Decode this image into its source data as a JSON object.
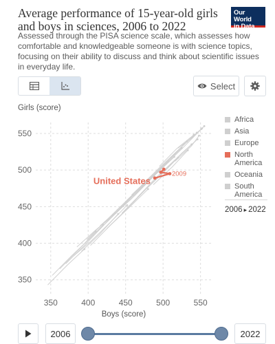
{
  "header": {
    "title": "Average performance of 15-year-old girls and boys in sciences, 2006 to 2022",
    "subtitle": "Assessed through the PISA science scale, which assesses how comfortable and knowledgeable someone is with science topics, focusing on their ability to discuss and think about scientific issues in everyday life.",
    "logo_line1": "Our World",
    "logo_line2": "in Data"
  },
  "toolbar": {
    "table_tab_icon": "table-icon",
    "chart_tab_icon": "scatter-chart-icon",
    "select_label": "Select",
    "select_icon": "eye-icon",
    "settings_icon": "gear-icon"
  },
  "legend": {
    "items": [
      {
        "label": "Africa",
        "color": "#cfcfcf"
      },
      {
        "label": "Asia",
        "color": "#cfcfcf"
      },
      {
        "label": "Europe",
        "color": "#cfcfcf"
      },
      {
        "label": "North America",
        "color": "#e56e5a"
      },
      {
        "label": "Oceania",
        "color": "#cfcfcf"
      },
      {
        "label": "South America",
        "color": "#cfcfcf"
      }
    ],
    "time_start": "2006",
    "time_end": "2022",
    "time_arrow": "▸"
  },
  "timeline": {
    "start": "2006",
    "end": "2022",
    "play_icon": "play-icon"
  },
  "chart_data": {
    "type": "scatter",
    "title": "Average performance of 15-year-old girls and boys in sciences, 2006 to 2022",
    "xlabel": "Boys (score)",
    "ylabel": "Girls (score)",
    "xlim": [
      330,
      565
    ],
    "ylim": [
      330,
      565
    ],
    "xticks": [
      350,
      400,
      450,
      500,
      550
    ],
    "yticks": [
      350,
      400,
      450,
      500,
      550
    ],
    "grid": true,
    "legend_position": "right",
    "highlight_color": "#e56e5a",
    "background_color": "#cfcfcf",
    "highlighted_series": [
      {
        "name": "United States",
        "region": "North America",
        "points": [
          {
            "x": 489,
            "y": 489,
            "year": "2006"
          },
          {
            "x": 509,
            "y": 495,
            "year": "2009"
          },
          {
            "x": 497,
            "y": 497
          },
          {
            "x": 501,
            "y": 501
          }
        ],
        "label_year": "2009"
      }
    ],
    "background_series": [
      {
        "points": [
          [
            346,
            343
          ],
          [
            372,
            370
          ],
          [
            395,
            392
          ]
        ]
      },
      {
        "points": [
          [
            352,
            356
          ],
          [
            378,
            383
          ],
          [
            402,
            406
          ],
          [
            420,
            425
          ]
        ]
      },
      {
        "points": [
          [
            362,
            365
          ],
          [
            388,
            392
          ],
          [
            410,
            416
          ]
        ]
      },
      {
        "points": [
          [
            370,
            372
          ],
          [
            396,
            398
          ],
          [
            421,
            425
          ],
          [
            445,
            450
          ]
        ]
      },
      {
        "points": [
          [
            381,
            383
          ],
          [
            405,
            404
          ],
          [
            431,
            430
          ],
          [
            452,
            452
          ]
        ]
      },
      {
        "points": [
          [
            385,
            395
          ],
          [
            410,
            418
          ],
          [
            437,
            441
          ],
          [
            460,
            466
          ]
        ]
      },
      {
        "points": [
          [
            391,
            389
          ],
          [
            415,
            412
          ],
          [
            440,
            440
          ]
        ]
      },
      {
        "points": [
          [
            398,
            405
          ],
          [
            422,
            429
          ],
          [
            449,
            456
          ],
          [
            472,
            479
          ]
        ]
      },
      {
        "points": [
          [
            403,
            397
          ],
          [
            430,
            425
          ],
          [
            457,
            451
          ],
          [
            480,
            474
          ]
        ]
      },
      {
        "points": [
          [
            410,
            414
          ],
          [
            438,
            442
          ],
          [
            463,
            466
          ],
          [
            488,
            492
          ]
        ]
      },
      {
        "points": [
          [
            416,
            424
          ],
          [
            442,
            447
          ],
          [
            470,
            475
          ],
          [
            494,
            498
          ]
        ]
      },
      {
        "points": [
          [
            425,
            420
          ],
          [
            452,
            447
          ],
          [
            478,
            475
          ],
          [
            503,
            500
          ]
        ]
      },
      {
        "points": [
          [
            431,
            437
          ],
          [
            457,
            460
          ],
          [
            484,
            489
          ],
          [
            507,
            512
          ]
        ]
      },
      {
        "points": [
          [
            438,
            445
          ],
          [
            464,
            469
          ],
          [
            490,
            494
          ],
          [
            515,
            518
          ]
        ]
      },
      {
        "points": [
          [
            445,
            441
          ],
          [
            471,
            468
          ],
          [
            496,
            492
          ],
          [
            520,
            517
          ]
        ]
      },
      {
        "points": [
          [
            452,
            459
          ],
          [
            477,
            483
          ],
          [
            501,
            507
          ],
          [
            525,
            530
          ]
        ]
      },
      {
        "points": [
          [
            458,
            466
          ],
          [
            484,
            491
          ],
          [
            509,
            515
          ],
          [
            532,
            539
          ]
        ]
      },
      {
        "points": [
          [
            466,
            463
          ],
          [
            490,
            489
          ],
          [
            515,
            513
          ],
          [
            538,
            535
          ]
        ]
      },
      {
        "points": [
          [
            473,
            481
          ],
          [
            497,
            505
          ],
          [
            521,
            528
          ],
          [
            545,
            551
          ]
        ]
      },
      {
        "points": [
          [
            480,
            485
          ],
          [
            505,
            509
          ],
          [
            528,
            532
          ],
          [
            551,
            556
          ]
        ]
      },
      {
        "points": [
          [
            487,
            480
          ],
          [
            512,
            504
          ],
          [
            533,
            527
          ]
        ]
      },
      {
        "points": [
          [
            495,
            505
          ],
          [
            518,
            529
          ],
          [
            541,
            548
          ]
        ]
      },
      {
        "points": [
          [
            503,
            500
          ],
          [
            525,
            523
          ],
          [
            546,
            542
          ]
        ]
      },
      {
        "points": [
          [
            510,
            517
          ],
          [
            531,
            538
          ],
          [
            552,
            557
          ]
        ]
      },
      {
        "points": [
          [
            516,
            512
          ],
          [
            538,
            533
          ],
          [
            548,
            547
          ]
        ]
      },
      {
        "points": [
          [
            520,
            530
          ],
          [
            540,
            545
          ],
          [
            555,
            560
          ]
        ]
      }
    ]
  }
}
